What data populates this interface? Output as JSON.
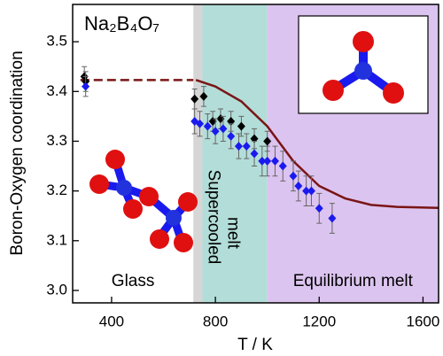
{
  "chart_data": {
    "type": "scatter",
    "title": "Na₂B₄O₇",
    "x_label": "T / K",
    "y_label": "Boron-Oxygen coordination",
    "xlim": [
      250,
      1660
    ],
    "ylim": [
      2.975,
      3.575
    ],
    "xticks": [
      400,
      800,
      1200,
      1600
    ],
    "yticks": [
      {
        "value": 3.0,
        "label": "3.0"
      },
      3.1,
      3.2,
      3.3,
      3.4,
      3.5
    ],
    "regions": [
      {
        "label": [
          "Glass"
        ],
        "start": 250,
        "end": 715,
        "fill": "#ffffff",
        "label_color": "#999999"
      },
      {
        "start": 715,
        "end": 750,
        "fill": "#d6d6d6"
      },
      {
        "label": [
          "Supercooled",
          "melt"
        ],
        "start": 750,
        "end": 1000,
        "fill": "#b3ddd8",
        "label_color": "#1f8c88"
      },
      {
        "label": [
          "Equilibrium melt"
        ],
        "start": 1000,
        "end": 1660,
        "fill": "#dcc4f0",
        "label_color": "#7a1515"
      }
    ],
    "lines": [
      {
        "color": "#7a1515",
        "style": "dashed",
        "x": [
          280,
          715
        ],
        "values": [
          3.423,
          3.423
        ]
      },
      {
        "color": "#7a1515",
        "style": "solid",
        "x": [
          725,
          800,
          900,
          1000,
          1100,
          1200,
          1300,
          1400,
          1500,
          1660
        ],
        "values": [
          3.423,
          3.41,
          3.38,
          3.33,
          3.26,
          3.21,
          3.185,
          3.172,
          3.168,
          3.166
        ]
      }
    ],
    "series": [
      {
        "color": "#000000",
        "x": [
          295,
          300,
          720,
          755,
          790,
          820,
          860,
          900,
          950,
          1000
        ],
        "values": [
          3.43,
          3.42,
          3.385,
          3.39,
          3.34,
          3.345,
          3.34,
          3.33,
          3.305,
          3.3
        ],
        "errors": [
          0.02,
          0.02,
          0.02,
          0.02,
          0.02,
          0.02,
          0.02,
          0.02,
          0.02,
          0.02
        ]
      },
      {
        "color": "#1a1aee",
        "x": [
          300,
          720,
          740,
          770,
          800,
          830,
          860,
          890,
          920,
          950,
          980,
          1000,
          1030,
          1060,
          1100,
          1120,
          1150,
          1170,
          1200,
          1250
        ],
        "values": [
          3.41,
          3.34,
          3.335,
          3.33,
          3.32,
          3.325,
          3.31,
          3.29,
          3.29,
          3.275,
          3.26,
          3.26,
          3.26,
          3.25,
          3.23,
          3.21,
          3.2,
          3.2,
          3.165,
          3.145
        ],
        "errors": [
          0.02,
          0.025,
          0.025,
          0.025,
          0.025,
          0.025,
          0.025,
          0.025,
          0.025,
          0.025,
          0.03,
          0.03,
          0.03,
          0.03,
          0.03,
          0.03,
          0.03,
          0.03,
          0.03,
          0.03
        ]
      }
    ]
  }
}
